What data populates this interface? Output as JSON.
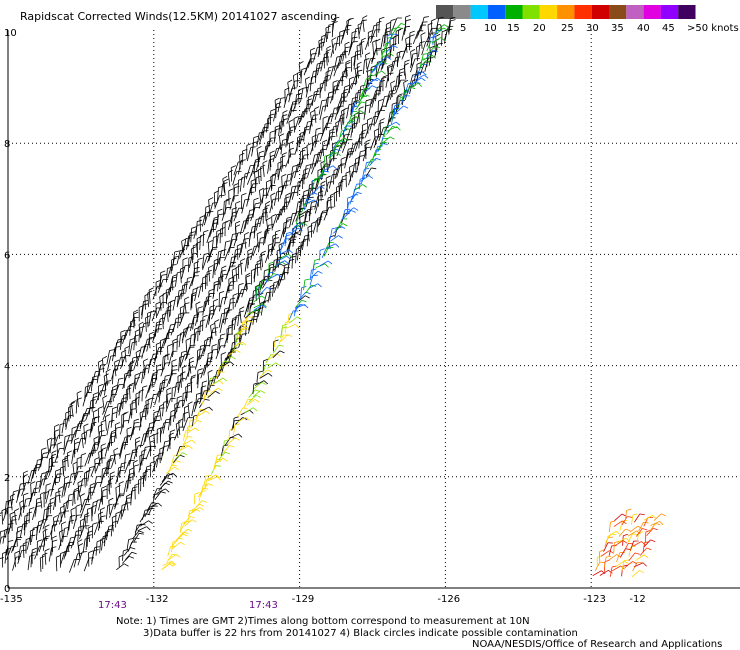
{
  "title": "Rapidscat Corrected Winds(12.5KM) 20141027 ascending",
  "legend": {
    "labels": [
      "0",
      "5",
      "10",
      "15",
      "20",
      "25",
      "30",
      "35",
      "40",
      "45",
      ">50 knots"
    ],
    "colors": [
      "#555555",
      "#8a8a8a",
      "#00c8ff",
      "#0060ff",
      "#00b000",
      "#80e000",
      "#ffd800",
      "#ff9000",
      "#ff3000",
      "#d00000",
      "#8a4a1a",
      "#c060c0",
      "#e000e0",
      "#9000ff",
      "#400060"
    ]
  },
  "axes": {
    "x_ticks": [
      "-135",
      "-132",
      "-129",
      "-126",
      "-123",
      "-12"
    ],
    "y_ticks": [
      "0",
      "2",
      "4",
      "6",
      "8",
      "10"
    ]
  },
  "times": [
    "17:43",
    "17:43"
  ],
  "notes": [
    "Note: 1) Times are GMT 2)Times along bottom correspond to measurement at 10N",
    "3)Data buffer is 22 hrs from 20141027 4) Black circles indicate possible contamination",
    "NOAA/NESDIS/Office of Research and Applications"
  ],
  "map_data": {
    "lon_range": [
      -135,
      -122
    ],
    "lat_range": [
      0,
      10
    ],
    "swaths": [
      {
        "name": "outer",
        "start": [
          -134.6,
          0.3
        ],
        "end": [
          -127.1,
          10.0
        ],
        "width_deg": 2.4
      },
      {
        "name": "inner",
        "start": [
          -132.3,
          0.3
        ],
        "end": [
          -126.6,
          10.0
        ],
        "width_deg": 0.9
      },
      {
        "name": "edge",
        "start": [
          -122.6,
          0.2
        ],
        "end": [
          -122.1,
          1.2
        ],
        "width_deg": 0.8
      }
    ]
  }
}
